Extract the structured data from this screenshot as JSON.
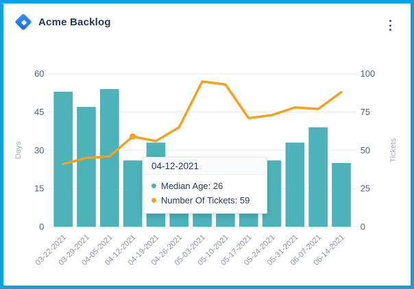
{
  "header": {
    "title": "Acme Backlog",
    "logo_icon": "jira-diamond-logo",
    "menu_icon": "kebab-menu"
  },
  "colors": {
    "frame": "#06A2E2",
    "bar": "#4DB3B8",
    "line": "#F7A01D",
    "grid": "#EBECF0",
    "tick_text": "#505F79",
    "axis_title_text": "#A7AEBB",
    "x_label_text": "#8993A4",
    "title_text": "#253858"
  },
  "chart_data": {
    "type": "bar",
    "subtype": "dual-axis bar+line combo",
    "categories": [
      "03-22-2021",
      "03-29-2021",
      "04-05-2021",
      "04-12-2021",
      "04-19-2021",
      "04-26-2021",
      "05-03-2021",
      "05-10-2021",
      "05-17-2021",
      "05-24-2021",
      "05-31-2021",
      "06-07-2021",
      "06-14-2021"
    ],
    "series": [
      {
        "name": "Median Age",
        "type": "bar",
        "axis": "left",
        "color": "#4DB3B8",
        "values": [
          53,
          47,
          54,
          26,
          33,
          6,
          6,
          6,
          6,
          26,
          33,
          39,
          25
        ]
      },
      {
        "name": "Number Of Tickets",
        "type": "line",
        "axis": "right",
        "color": "#F7A01D",
        "values": [
          41,
          45,
          46,
          59,
          56,
          65,
          95,
          93,
          71,
          73,
          78,
          77,
          88
        ],
        "marker_index": 3
      }
    ],
    "left_axis": {
      "label": "Days",
      "ticks": [
        0,
        15,
        30,
        45,
        60
      ],
      "max": 60
    },
    "right_axis": {
      "label": "Tickets",
      "ticks": [
        0,
        25,
        50,
        75,
        100
      ],
      "max": 100
    },
    "grid": true,
    "legend": false
  },
  "tooltip": {
    "title": "04-12-2021",
    "items": [
      {
        "text": "Median Age: 26",
        "dot_color": "#4DB3B8"
      },
      {
        "text": "Number Of Tickets: 59",
        "dot_color": "#F7A01D"
      }
    ]
  }
}
